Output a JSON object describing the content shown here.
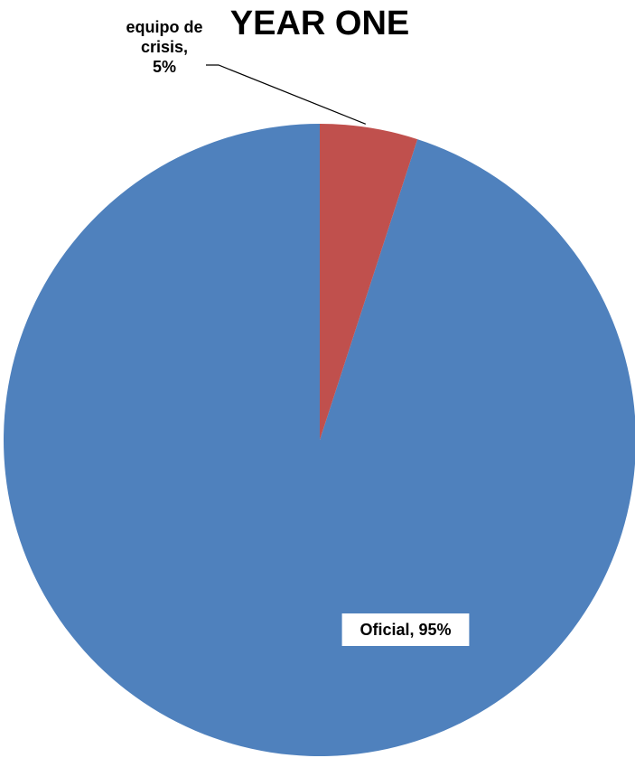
{
  "chart_data": {
    "type": "pie",
    "title": "YEAR ONE",
    "start_angle_deg": 0,
    "direction": "counterclockwise",
    "slices": [
      {
        "name": "Oficial",
        "value": 95,
        "label_lines": [
          "Oficial, 95%"
        ],
        "color": "#4F81BD",
        "label_box": true
      },
      {
        "name": "equipo de crisis",
        "value": 5,
        "label_lines": [
          "equipo de",
          "crisis,",
          "5%"
        ],
        "color": "#C0504D",
        "label_box": false,
        "leader_line": true
      }
    ],
    "legend": "none"
  }
}
